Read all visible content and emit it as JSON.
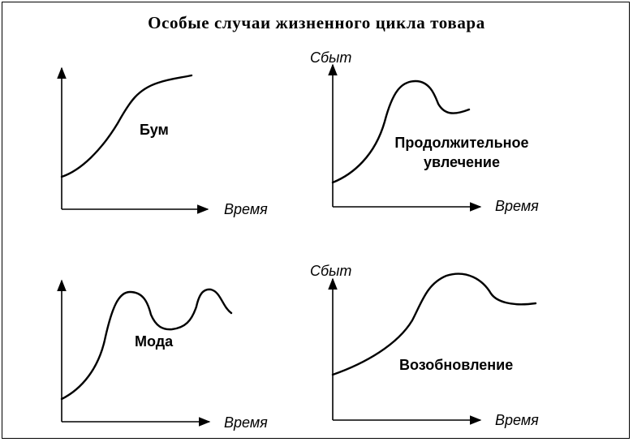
{
  "title": "Особые случаи жизненного цикла товара",
  "axis_labels": {
    "x": "Время",
    "y": "Сбыт"
  },
  "panels": [
    {
      "id": "boom",
      "label_lines": [
        "Бум"
      ],
      "shows_y_label": false
    },
    {
      "id": "prolonged",
      "label_lines": [
        "Продолжительное",
        "увлечение"
      ],
      "shows_y_label": true
    },
    {
      "id": "fashion",
      "label_lines": [
        "Мода"
      ],
      "shows_y_label": false
    },
    {
      "id": "renewal",
      "label_lines": [
        "Возобновление"
      ],
      "shows_y_label": true
    }
  ],
  "colors": {
    "line": "#000000",
    "background": "#ffffff"
  }
}
